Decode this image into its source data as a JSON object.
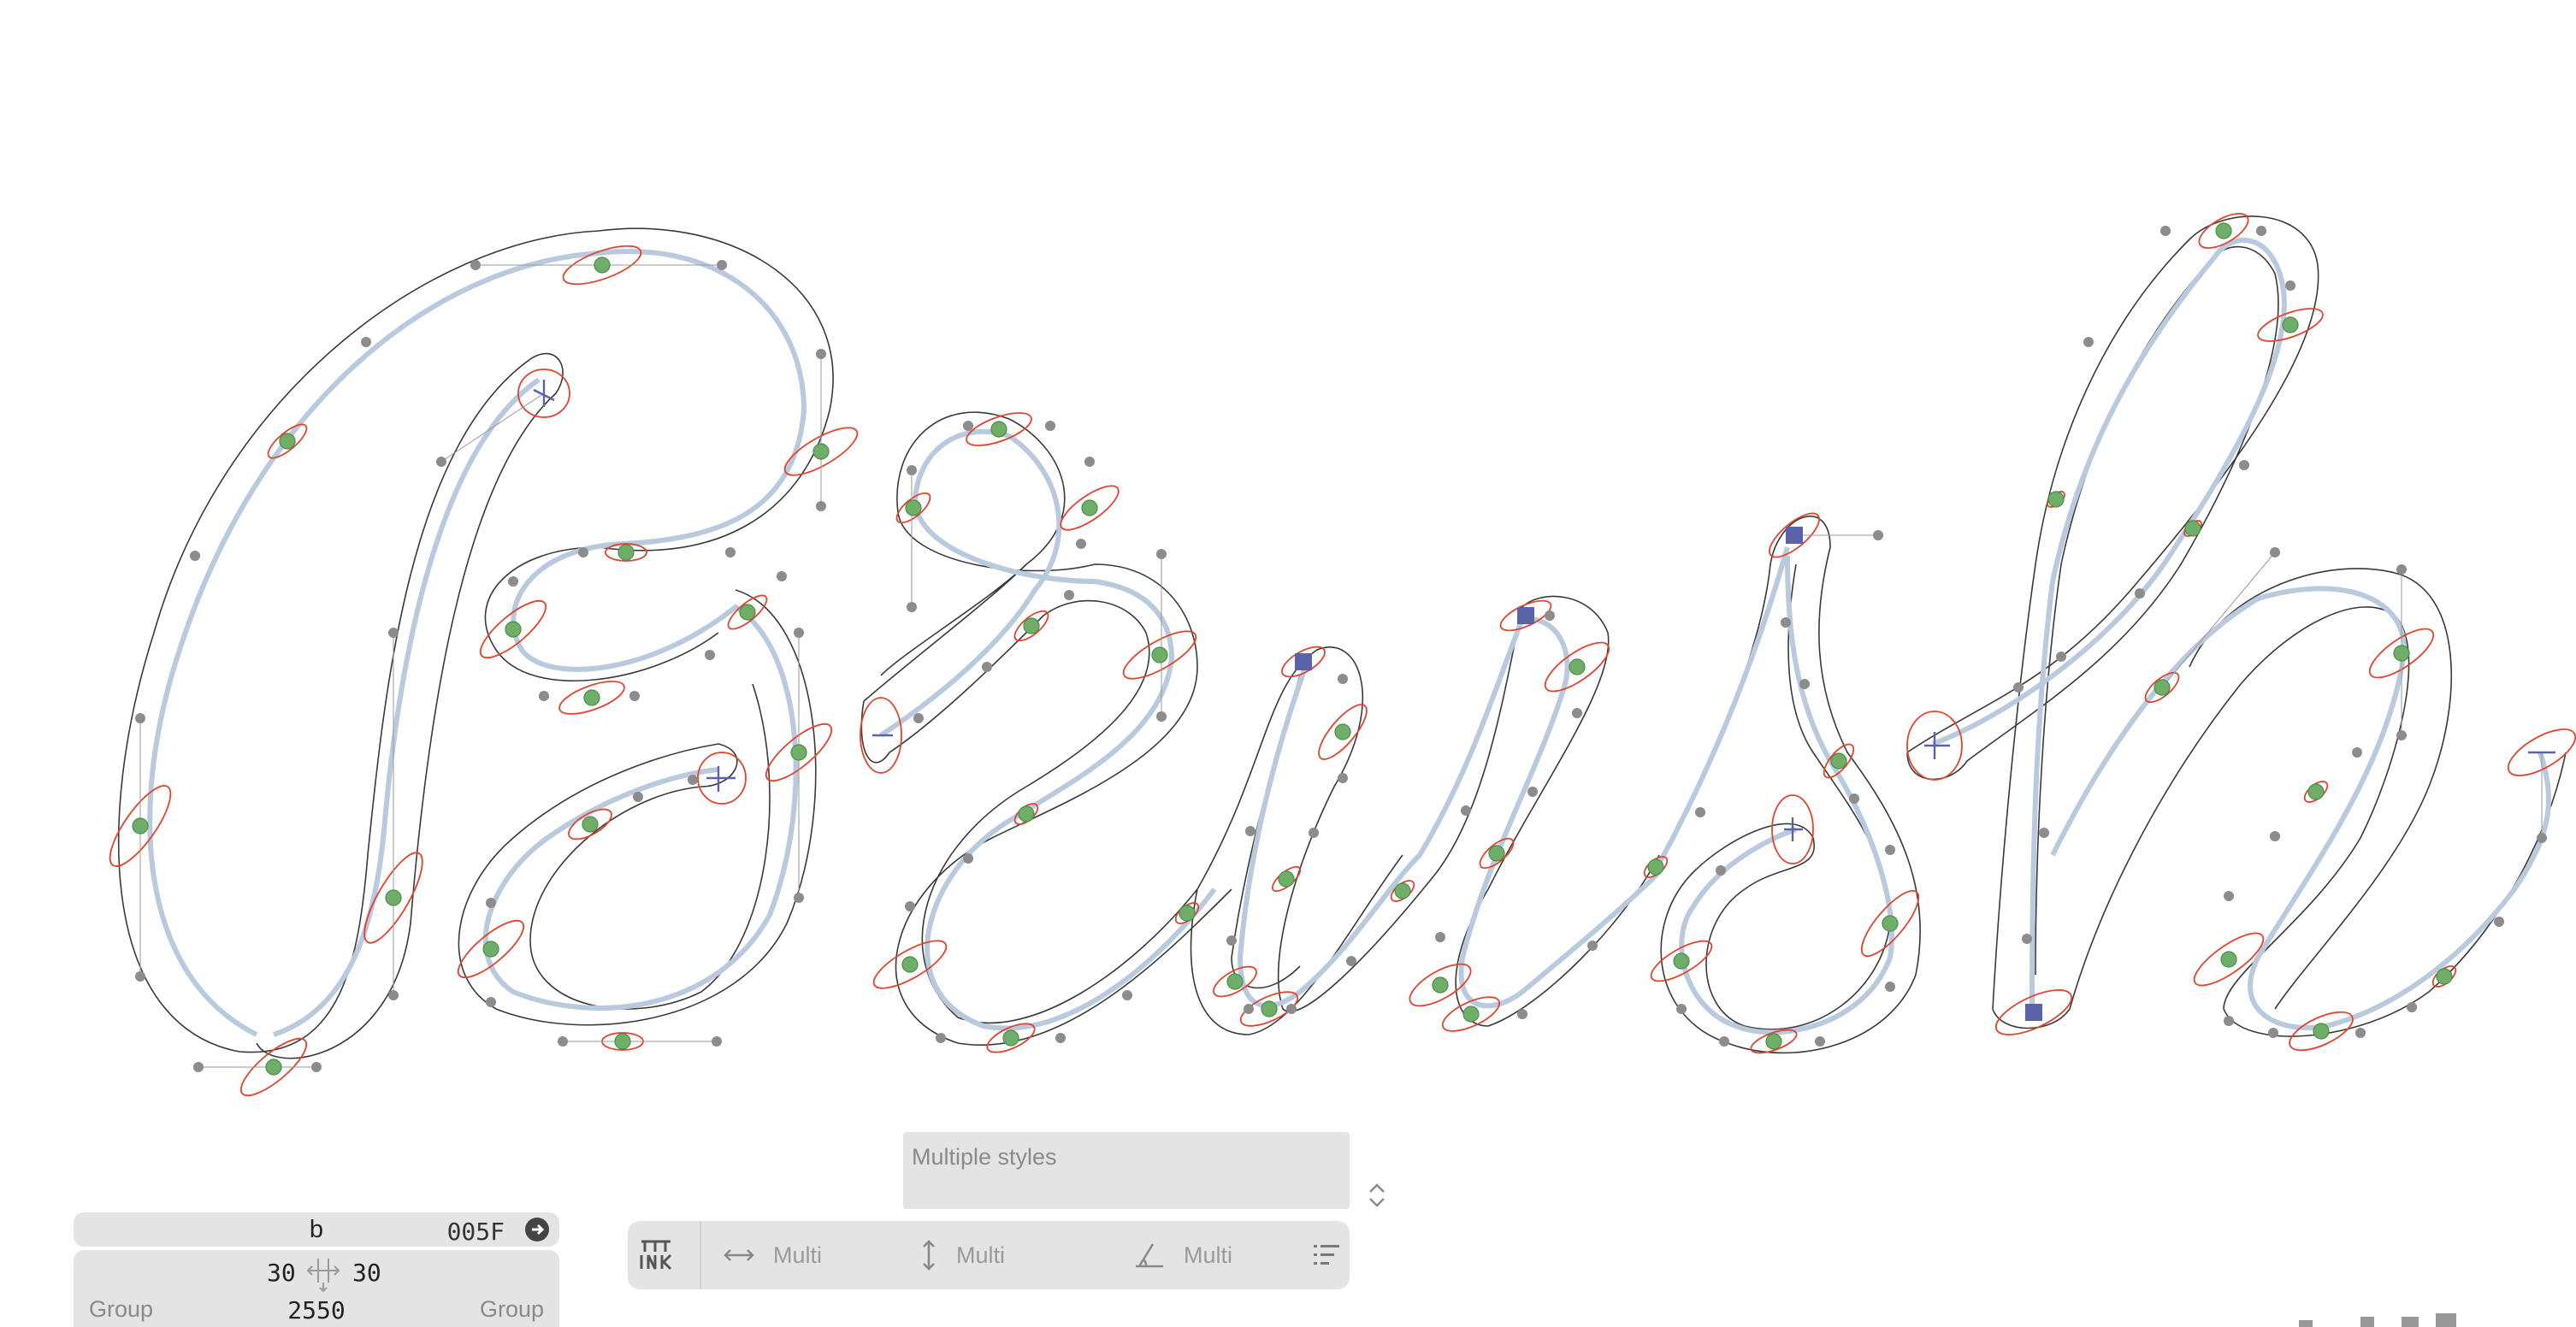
{
  "glyph_info": {
    "name": "b",
    "unicode": "005F",
    "lsb": "30",
    "rsb": "30",
    "left_group": "Group",
    "right_group": "Group",
    "width": "2550"
  },
  "style_select": {
    "value": "Multiple styles"
  },
  "transform_toolbar": {
    "width_value": "Multi",
    "height_value": "Multi",
    "angle_value": "Multi"
  },
  "canvas": {
    "content": "Brush script glyph outlines with brush ellipses and nodes",
    "colors": {
      "outline": "#3a3a3a",
      "centerline": "#b9c9de",
      "brush_ellipse": "#e0452e",
      "node": "#6fae68",
      "handle": "#8c8c8c",
      "selected_node": "#5a63a8"
    }
  }
}
